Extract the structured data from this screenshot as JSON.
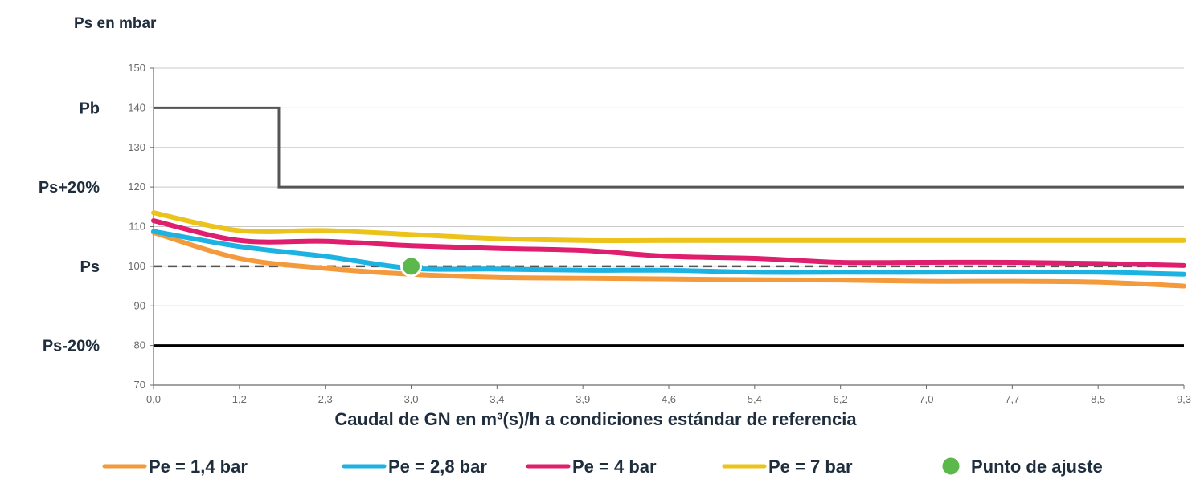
{
  "chart_data": {
    "type": "line",
    "ylabel": "Ps en mbar",
    "xlabel": "Caudal de GN en m³(s)/h a condiciones estándar de referencia",
    "ylim": [
      70,
      150
    ],
    "yticks": [
      70,
      80,
      90,
      100,
      110,
      120,
      130,
      140,
      150
    ],
    "categories": [
      "0,0",
      "1,2",
      "2,3",
      "3,0",
      "3,4",
      "3,9",
      "4,6",
      "5,4",
      "6,2",
      "7,0",
      "7,7",
      "8,5",
      "9,3"
    ],
    "grid": true,
    "reference_labels": [
      {
        "label": "Pb",
        "y": 140
      },
      {
        "label": "Ps+20%",
        "y": 120
      },
      {
        "label": "Ps",
        "y": 100
      },
      {
        "label": "Ps-20%",
        "y": 80
      }
    ],
    "limit_lines": [
      {
        "id": "pb-step",
        "color": "#555555",
        "style": "solid",
        "points": [
          [
            0,
            140
          ],
          [
            1.46,
            140
          ],
          [
            1.46,
            120
          ],
          [
            12,
            120
          ]
        ]
      },
      {
        "id": "ps-nominal",
        "color": "#555555",
        "style": "dashed",
        "points": [
          [
            0,
            100
          ],
          [
            12,
            100
          ]
        ]
      },
      {
        "id": "ps-minus-20",
        "color": "#000000",
        "style": "solid",
        "points": [
          [
            0,
            80
          ],
          [
            12,
            80
          ]
        ]
      }
    ],
    "series": [
      {
        "name": "Pe = 1,4 bar",
        "color": "#f39a3c",
        "values": [
          108.5,
          102,
          99.5,
          98,
          97.2,
          97,
          96.8,
          96.6,
          96.5,
          96.2,
          96.2,
          96,
          95
        ]
      },
      {
        "name": "Pe = 2,8 bar",
        "color": "#1cb3e3",
        "values": [
          108.8,
          105,
          102.5,
          99.5,
          99.3,
          99,
          99,
          98.5,
          98.5,
          98.5,
          98.6,
          98.5,
          98
        ]
      },
      {
        "name": "Pe = 4 bar",
        "color": "#e01e6e",
        "values": [
          111.5,
          106.5,
          106.3,
          105.2,
          104.5,
          104,
          102.5,
          102,
          101,
          101,
          101,
          100.7,
          100.2
        ]
      },
      {
        "name": "Pe = 7 bar",
        "color": "#ecc31a",
        "values": [
          113.5,
          109,
          109,
          108,
          107,
          106.5,
          106.5,
          106.5,
          106.5,
          106.5,
          106.5,
          106.5,
          106.5
        ]
      }
    ],
    "adjust_point": {
      "name": "Punto de ajuste",
      "x_index": 3,
      "y": 100,
      "color": "#5cb84a"
    }
  }
}
